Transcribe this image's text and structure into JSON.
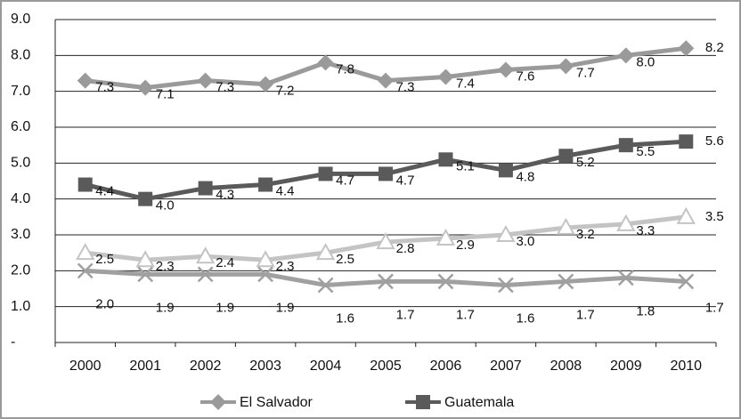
{
  "chart_data": {
    "type": "line",
    "categories": [
      "2000",
      "2001",
      "2002",
      "2003",
      "2004",
      "2005",
      "2006",
      "2007",
      "2008",
      "2009",
      "2010"
    ],
    "series": [
      {
        "name": "El Salvador",
        "color": "#9a9a9a",
        "marker": "diamond",
        "values": [
          7.3,
          7.1,
          7.3,
          7.2,
          7.8,
          7.3,
          7.4,
          7.6,
          7.7,
          8.0,
          8.2
        ],
        "value_labels": [
          "7.3",
          "7.1",
          "7.3",
          "7.2",
          "7.8",
          "7.3",
          "7.4",
          "7.6",
          "7.7",
          "8.0",
          "8.2"
        ]
      },
      {
        "name": "Guatemala",
        "color": "#5a5a5a",
        "marker": "square",
        "values": [
          4.4,
          4.0,
          4.3,
          4.4,
          4.7,
          4.7,
          5.1,
          4.8,
          5.2,
          5.5,
          5.6
        ],
        "value_labels": [
          "4.4",
          "4.0",
          "4.3",
          "4.4",
          "4.7",
          "4.7",
          "5.1",
          "4.8",
          "5.2",
          "5.5",
          "5.6"
        ]
      },
      {
        "color": "#c4c4c4",
        "marker": "triangle",
        "values": [
          2.5,
          2.3,
          2.4,
          2.3,
          2.5,
          2.8,
          2.9,
          3.0,
          3.2,
          3.3,
          3.5
        ],
        "value_labels": [
          "2.5",
          "2.3",
          "2.4",
          "2.3",
          "2.5",
          "2.8",
          "2.9",
          "3.0",
          "3.2",
          "3.3",
          "3.5"
        ]
      },
      {
        "color": "#a0a0a0",
        "marker": "x",
        "values": [
          2.0,
          1.9,
          1.9,
          1.9,
          1.6,
          1.7,
          1.7,
          1.6,
          1.7,
          1.8,
          1.7
        ],
        "value_labels": [
          "2.0",
          "1.9",
          "1.9",
          "1.9",
          "1.6",
          "1.7",
          "1.7",
          "1.6",
          "1.7",
          "1.8",
          "1.7"
        ]
      }
    ],
    "ylim": [
      0,
      9
    ],
    "yticks": [
      {
        "value": 0,
        "label": "-"
      },
      {
        "value": 1,
        "label": "1.0"
      },
      {
        "value": 2,
        "label": "2.0"
      },
      {
        "value": 3,
        "label": "3.0"
      },
      {
        "value": 4,
        "label": "4.0"
      },
      {
        "value": 5,
        "label": "5.0"
      },
      {
        "value": 6,
        "label": "6.0"
      },
      {
        "value": 7,
        "label": "7.0"
      },
      {
        "value": 8,
        "label": "8.0"
      },
      {
        "value": 9,
        "label": "9.0"
      }
    ],
    "grid": true
  }
}
